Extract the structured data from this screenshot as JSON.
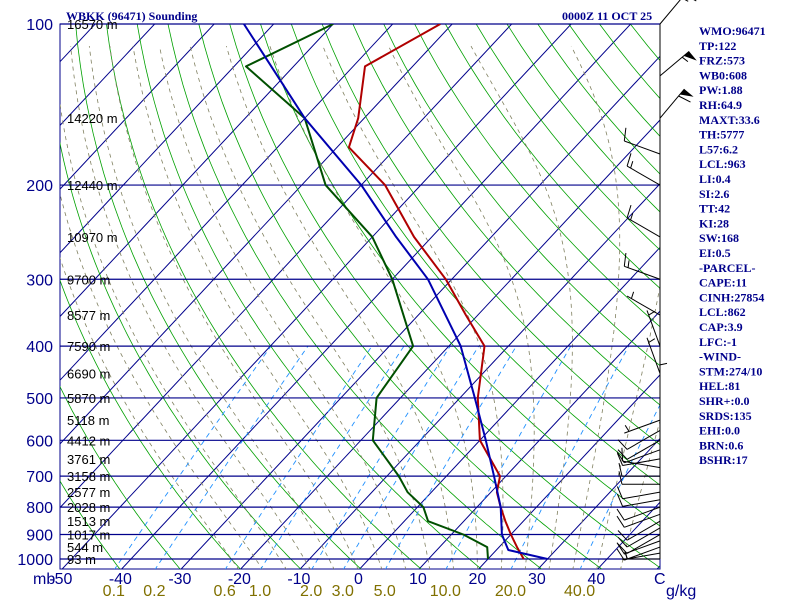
{
  "header": {
    "station_title": "WBKK (96471) Sounding",
    "time_title": "0000Z 11 OCT 25"
  },
  "chart_data": {
    "type": "skew-t",
    "pressure_unit": "mb",
    "temperature_unit": "C",
    "mixing_ratio_unit": "g/kg",
    "pressure_levels": [
      100,
      200,
      300,
      400,
      500,
      600,
      700,
      800,
      900,
      1000
    ],
    "height_labels": [
      {
        "p": 100,
        "label": "16570 m"
      },
      {
        "p": 150,
        "label": "14220 m"
      },
      {
        "p": 200,
        "label": "12440 m"
      },
      {
        "p": 250,
        "label": "10970 m"
      },
      {
        "p": 300,
        "label": "9700 m"
      },
      {
        "p": 350,
        "label": "8577 m"
      },
      {
        "p": 400,
        "label": "7590 m"
      },
      {
        "p": 450,
        "label": "6690 m"
      },
      {
        "p": 500,
        "label": "5870 m"
      },
      {
        "p": 550,
        "label": "5118 m"
      },
      {
        "p": 600,
        "label": "4412 m"
      },
      {
        "p": 650,
        "label": "3761 m"
      },
      {
        "p": 700,
        "label": "3158 m"
      },
      {
        "p": 750,
        "label": "2577 m"
      },
      {
        "p": 800,
        "label": "2028 m"
      },
      {
        "p": 850,
        "label": "1513 m"
      },
      {
        "p": 900,
        "label": "1017 m"
      },
      {
        "p": 950,
        "label": "544 m"
      },
      {
        "p": 1000,
        "label": "93 m"
      }
    ],
    "temperature_ticks": [
      -50,
      -40,
      -30,
      -20,
      -10,
      0,
      10,
      20,
      30,
      40
    ],
    "mixing_ratio_labels": [
      {
        "w": 0.1,
        "label": "0.1"
      },
      {
        "w": 0.2,
        "label": "0.2"
      },
      {
        "w": 0.6,
        "label": "0.6"
      },
      {
        "w": 1.0,
        "label": "1.0"
      },
      {
        "w": 2.0,
        "label": "2.0"
      },
      {
        "w": 3.0,
        "label": "3.0"
      },
      {
        "w": 5.0,
        "label": "5.0"
      },
      {
        "w": 10.0,
        "label": "10.0"
      },
      {
        "w": 20.0,
        "label": "20.0"
      },
      {
        "w": 40.0,
        "label": "40.0"
      }
    ],
    "series": [
      {
        "name": "Temperature",
        "color": "#b00000",
        "points": [
          {
            "p": 1000,
            "t": 26
          },
          {
            "p": 950,
            "t": 23
          },
          {
            "p": 900,
            "t": 20
          },
          {
            "p": 850,
            "t": 17
          },
          {
            "p": 800,
            "t": 14
          },
          {
            "p": 750,
            "t": 11
          },
          {
            "p": 700,
            "t": 9
          },
          {
            "p": 600,
            "t": 0
          },
          {
            "p": 500,
            "t": -7
          },
          {
            "p": 400,
            "t": -14
          },
          {
            "p": 350,
            "t": -22
          },
          {
            "p": 300,
            "t": -31
          },
          {
            "p": 250,
            "t": -43
          },
          {
            "p": 200,
            "t": -56
          },
          {
            "p": 170,
            "t": -68
          },
          {
            "p": 150,
            "t": -71
          },
          {
            "p": 120,
            "t": -78
          },
          {
            "p": 100,
            "t": -72
          }
        ]
      },
      {
        "name": "Dewpoint",
        "color": "#005000",
        "points": [
          {
            "p": 1000,
            "t": 20
          },
          {
            "p": 950,
            "t": 18
          },
          {
            "p": 900,
            "t": 12
          },
          {
            "p": 850,
            "t": 4
          },
          {
            "p": 800,
            "t": 1
          },
          {
            "p": 750,
            "t": -4
          },
          {
            "p": 700,
            "t": -8
          },
          {
            "p": 600,
            "t": -18
          },
          {
            "p": 500,
            "t": -24
          },
          {
            "p": 400,
            "t": -26
          },
          {
            "p": 300,
            "t": -40
          },
          {
            "p": 250,
            "t": -50
          },
          {
            "p": 200,
            "t": -66
          },
          {
            "p": 150,
            "t": -80
          },
          {
            "p": 120,
            "t": -98
          },
          {
            "p": 100,
            "t": -90
          }
        ]
      },
      {
        "name": "Parcel",
        "color": "#0000b0",
        "points": [
          {
            "p": 1000,
            "t": 30
          },
          {
            "p": 962,
            "t": 22
          },
          {
            "p": 900,
            "t": 18.5
          },
          {
            "p": 800,
            "t": 14
          },
          {
            "p": 700,
            "t": 8
          },
          {
            "p": 600,
            "t": 1
          },
          {
            "p": 500,
            "t": -7.5
          },
          {
            "p": 400,
            "t": -18
          },
          {
            "p": 300,
            "t": -34
          },
          {
            "p": 250,
            "t": -46
          },
          {
            "p": 200,
            "t": -60
          },
          {
            "p": 150,
            "t": -80
          },
          {
            "p": 100,
            "t": -105
          }
        ]
      }
    ],
    "wind_barbs": [
      {
        "p": 1000,
        "dir": 270,
        "spd": 5
      },
      {
        "p": 975,
        "dir": 260,
        "spd": 5
      },
      {
        "p": 950,
        "dir": 250,
        "spd": 10
      },
      {
        "p": 925,
        "dir": 250,
        "spd": 10
      },
      {
        "p": 900,
        "dir": 240,
        "spd": 10
      },
      {
        "p": 875,
        "dir": 240,
        "spd": 10
      },
      {
        "p": 850,
        "dir": 240,
        "spd": 10
      },
      {
        "p": 825,
        "dir": 250,
        "spd": 10
      },
      {
        "p": 800,
        "dir": 250,
        "spd": 10
      },
      {
        "p": 775,
        "dir": 260,
        "spd": 10
      },
      {
        "p": 750,
        "dir": 260,
        "spd": 10
      },
      {
        "p": 725,
        "dir": 270,
        "spd": 10
      },
      {
        "p": 700,
        "dir": 270,
        "spd": 10
      },
      {
        "p": 675,
        "dir": 280,
        "spd": 10
      },
      {
        "p": 650,
        "dir": 260,
        "spd": 10
      },
      {
        "p": 625,
        "dir": 250,
        "spd": 10
      },
      {
        "p": 600,
        "dir": 240,
        "spd": 10
      },
      {
        "p": 575,
        "dir": 240,
        "spd": 10
      },
      {
        "p": 550,
        "dir": 250,
        "spd": 5
      },
      {
        "p": 500,
        "dir": 360,
        "spd": 5
      },
      {
        "p": 450,
        "dir": 340,
        "spd": 5
      },
      {
        "p": 400,
        "dir": 340,
        "spd": 5
      },
      {
        "p": 350,
        "dir": 300,
        "spd": 5
      },
      {
        "p": 300,
        "dir": 290,
        "spd": 15
      },
      {
        "p": 250,
        "dir": 300,
        "spd": 15
      },
      {
        "p": 200,
        "dir": 300,
        "spd": 15
      },
      {
        "p": 175,
        "dir": 290,
        "spd": 10
      },
      {
        "p": 150,
        "dir": 40,
        "spd": 60
      },
      {
        "p": 125,
        "dir": 50,
        "spd": 55
      },
      {
        "p": 100,
        "dir": 40,
        "spd": 15
      }
    ]
  },
  "indices": [
    "WMO:96471",
    "TP:122",
    "FRZ:573",
    "WB0:608",
    "PW:1.88",
    "RH:64.9",
    "MAXT:33.6",
    "TH:5777",
    "L57:6.2",
    "LCL:963",
    "LI:0.4",
    "SI:2.6",
    "TT:42",
    "KI:28",
    "SW:168",
    "EI:0.5",
    "-PARCEL-",
    "CAPE:11",
    "CINH:27854",
    "LCL:862",
    "CAP:3.9",
    "LFC:-1",
    "-WIND-",
    "STM:274/10",
    "HEL:81",
    "SHR+:0.0",
    "SRDS:135",
    "EHI:0.0",
    "BRN:0.6",
    "BSHR:17"
  ],
  "colors": {
    "isobar": "#00008b",
    "isotherm": "#00008b",
    "dry_adiabat": "#00a000",
    "moist_adiabat": "#00a000",
    "mixing_ratio": "#2090ff",
    "saturated": "#808060",
    "text": "#00008b",
    "mixing_label": "#807000"
  }
}
